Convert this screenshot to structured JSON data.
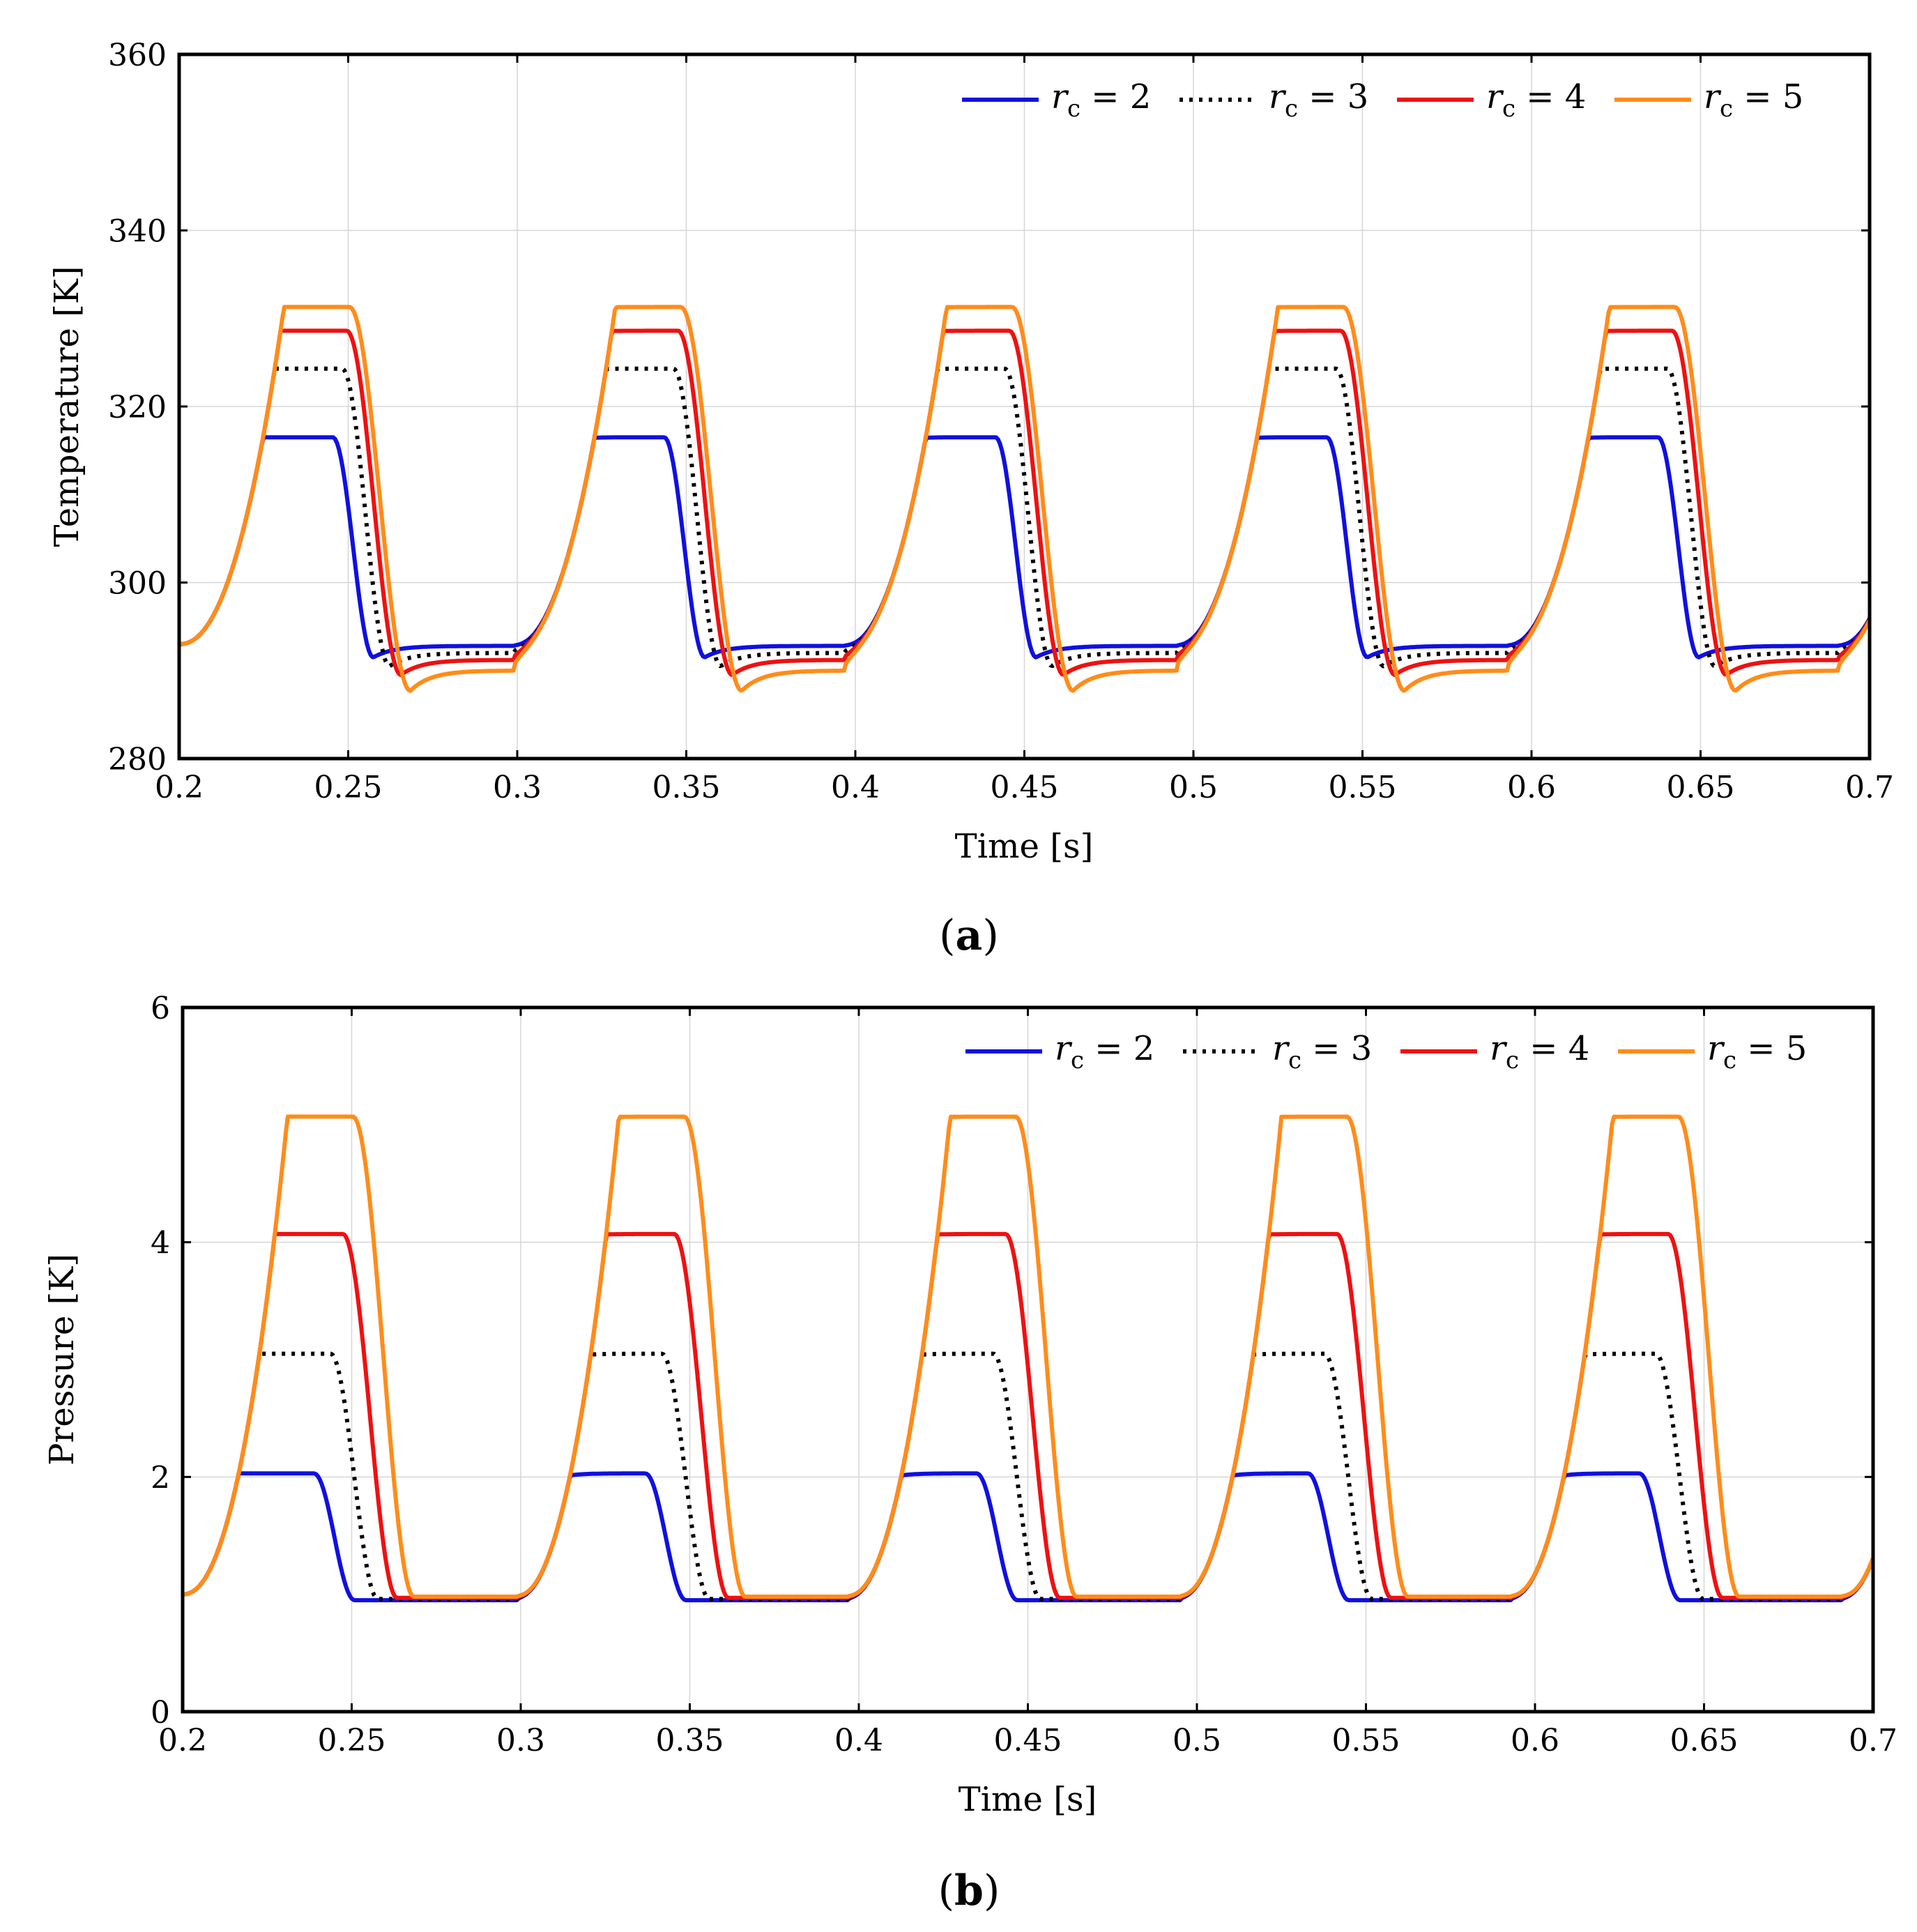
{
  "chart_data": [
    {
      "type": "line",
      "panel_label": "a",
      "xlabel": "Time [s]",
      "ylabel": "Temperature [K]",
      "xlim": [
        0.2,
        0.7
      ],
      "ylim": [
        280,
        360
      ],
      "xticks": [
        "0.2",
        "0.25",
        "0.3",
        "0.35",
        "0.4",
        "0.45",
        "0.5",
        "0.55",
        "0.6",
        "0.65",
        "0.7"
      ],
      "yticks": [
        "280",
        "300",
        "320",
        "340",
        "360"
      ],
      "grid": true,
      "legend_position": "top-right",
      "cycle_starts": [
        0.2,
        0.298,
        0.396,
        0.494,
        0.592,
        0.69
      ],
      "baseline_start": 293,
      "series": [
        {
          "name": "r_c = 2",
          "legend_symbol": "r",
          "legend_sub": "c",
          "legend_eq": " = 2",
          "color": "#1010e0",
          "dash": "solid",
          "peak": 316.5,
          "min": 291.5,
          "valley": 292.8
        },
        {
          "name": "r_c = 3",
          "legend_symbol": "r",
          "legend_sub": "c",
          "legend_eq": " = 3",
          "color": "#000000",
          "dash": "dotted",
          "peak": 324.3,
          "min": 290.5,
          "valley": 292.0
        },
        {
          "name": "r_c = 4",
          "legend_symbol": "r",
          "legend_sub": "c",
          "legend_eq": " = 4",
          "color": "#ee1111",
          "dash": "solid",
          "peak": 328.6,
          "min": 289.5,
          "valley": 291.2
        },
        {
          "name": "r_c = 5",
          "legend_symbol": "r",
          "legend_sub": "c",
          "legend_eq": " = 5",
          "color": "#ff8c1a",
          "dash": "solid",
          "peak": 331.3,
          "min": 287.7,
          "valley": 290.0
        }
      ]
    },
    {
      "type": "line",
      "panel_label": "b",
      "xlabel": "Time [s]",
      "ylabel": "Pressure [K]",
      "xlim": [
        0.2,
        0.7
      ],
      "ylim": [
        0,
        6
      ],
      "xticks": [
        "0.2",
        "0.25",
        "0.3",
        "0.35",
        "0.4",
        "0.45",
        "0.5",
        "0.55",
        "0.6",
        "0.65",
        "0.7"
      ],
      "yticks": [
        "0",
        "2",
        "4",
        "6"
      ],
      "grid": true,
      "legend_position": "top-right",
      "cycle_starts": [
        0.2,
        0.298,
        0.396,
        0.494,
        0.592,
        0.69
      ],
      "baseline_start": 1.0,
      "series": [
        {
          "name": "r_c = 2",
          "legend_symbol": "r",
          "legend_sub": "c",
          "legend_eq": " = 2",
          "color": "#1010e0",
          "dash": "solid",
          "peak": 2.03,
          "min": 0.95,
          "valley": 0.95
        },
        {
          "name": "r_c = 3",
          "legend_symbol": "r",
          "legend_sub": "c",
          "legend_eq": " = 3",
          "color": "#000000",
          "dash": "dotted",
          "peak": 3.05,
          "min": 0.96,
          "valley": 0.96
        },
        {
          "name": "r_c = 4",
          "legend_symbol": "r",
          "legend_sub": "c",
          "legend_eq": " = 4",
          "color": "#ee1111",
          "dash": "solid",
          "peak": 4.07,
          "min": 0.97,
          "valley": 0.97
        },
        {
          "name": "r_c = 5",
          "legend_symbol": "r",
          "legend_sub": "c",
          "legend_eq": " = 5",
          "color": "#ff8c1a",
          "dash": "solid",
          "peak": 5.07,
          "min": 0.98,
          "valley": 0.98
        }
      ]
    }
  ]
}
